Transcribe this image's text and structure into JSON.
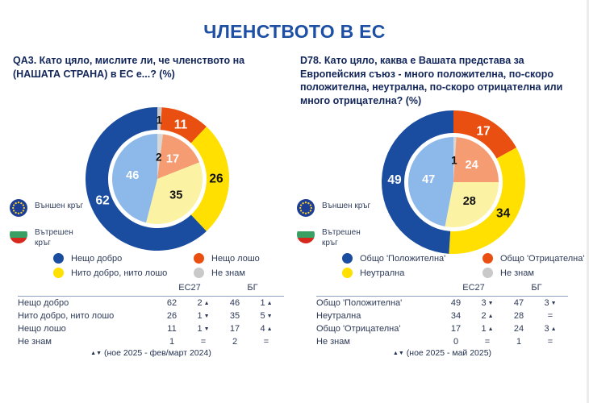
{
  "title": "ЧЛЕНСТВОТО В ЕС",
  "colors": {
    "title_blue": "#1d4fa5",
    "blue": "#1a4da0",
    "orange": "#ea4f12",
    "yellow": "#ffe000",
    "gray": "#c9c9c9",
    "light_blue": "#8db9ea",
    "salmon": "#f69c73",
    "light_yellow": "#fbf2a4",
    "light_gray": "#d7d7d7"
  },
  "panels": [
    {
      "question": "QA3. Като цяло, мислите ли, че членството на (НАШАТА СТРАНА) в ЕС е...? (%)",
      "ring_legend": [
        {
          "flag": "eu",
          "label": "Външен кръг"
        },
        {
          "flag": "bg",
          "label": "Вътрешен кръг"
        }
      ],
      "color_legend": [
        {
          "color": "#1a4da0",
          "label": "Нещо добро"
        },
        {
          "color": "#ea4f12",
          "label": "Нещо лошо"
        },
        {
          "color": "#ffe000",
          "label": "Нито добро, нито лошо"
        },
        {
          "color": "#c9c9c9",
          "label": "Не знам"
        }
      ],
      "table": {
        "group_headers": [
          "ЕС27",
          "БГ"
        ],
        "rows": [
          {
            "label": "Нещо добро",
            "cells": [
              {
                "t": "62"
              },
              {
                "t": "2",
                "a": "up"
              },
              {
                "t": "46"
              },
              {
                "t": "1",
                "a": "up"
              }
            ]
          },
          {
            "label": "Нито добро, нито лошо",
            "cells": [
              {
                "t": "26"
              },
              {
                "t": "1",
                "a": "down"
              },
              {
                "t": "35"
              },
              {
                "t": "5",
                "a": "down"
              }
            ]
          },
          {
            "label": "Нещо лошо",
            "cells": [
              {
                "t": "11"
              },
              {
                "t": "1",
                "a": "down"
              },
              {
                "t": "17"
              },
              {
                "t": "4",
                "a": "up"
              }
            ]
          },
          {
            "label": "Не знам",
            "cells": [
              {
                "t": "1"
              },
              {
                "t": "="
              },
              {
                "t": "2"
              },
              {
                "t": "="
              }
            ]
          }
        ],
        "footnote_marks": "▲▼",
        "footnote_text": "(ное 2025 - фев/март 2024)"
      }
    },
    {
      "question": "D78. Като цяло, каква е Вашата представа за Европейския съюз - много положителна, по-скоро положителна, неутрална, по-скоро отрицателна или много отрицателна? (%)",
      "ring_legend": [
        {
          "flag": "eu",
          "label": "Външен кръг"
        },
        {
          "flag": "bg",
          "label": "Вътрешен кръг"
        }
      ],
      "color_legend": [
        {
          "color": "#1a4da0",
          "label": "Общо 'Положителна'"
        },
        {
          "color": "#ea4f12",
          "label": "Общо 'Отрицателна'"
        },
        {
          "color": "#ffe000",
          "label": "Неутрална"
        },
        {
          "color": "#c9c9c9",
          "label": "Не знам"
        }
      ],
      "table": {
        "group_headers": [
          "ЕС27",
          "БГ"
        ],
        "rows": [
          {
            "label": "Общо 'Положителна'",
            "cells": [
              {
                "t": "49"
              },
              {
                "t": "3",
                "a": "down"
              },
              {
                "t": "47"
              },
              {
                "t": "3",
                "a": "down"
              }
            ]
          },
          {
            "label": "Неутрална",
            "cells": [
              {
                "t": "34"
              },
              {
                "t": "2",
                "a": "up"
              },
              {
                "t": "28"
              },
              {
                "t": "="
              }
            ]
          },
          {
            "label": "Общо 'Отрицателна'",
            "cells": [
              {
                "t": "17"
              },
              {
                "t": "1",
                "a": "up"
              },
              {
                "t": "24"
              },
              {
                "t": "3",
                "a": "up"
              }
            ]
          },
          {
            "label": "Не знам",
            "cells": [
              {
                "t": "0"
              },
              {
                "t": "="
              },
              {
                "t": "1"
              },
              {
                "t": "="
              }
            ]
          }
        ],
        "footnote_marks": "▲▼",
        "footnote_text": "(ное 2025 - май 2025)"
      }
    }
  ],
  "chart_data": [
    {
      "type": "donut-nested",
      "title": "QA3. Като цяло, мислите ли, че членството на (НАШАТА СТРАНА) в ЕС е...? (%)",
      "start_angle_deg": 0,
      "clockwise": true,
      "legend_position": "bottom",
      "rings": [
        {
          "name": "Външен кръг (ЕС27)",
          "radius": "outer",
          "slices": [
            {
              "label": "Не знам",
              "value": 1,
              "color": "#c9c9c9",
              "text": "#111111"
            },
            {
              "label": "Нещо лошо",
              "value": 11,
              "color": "#ea4f12",
              "text": "#ffffff"
            },
            {
              "label": "Нито добро, нито лошо",
              "value": 26,
              "color": "#ffe000",
              "text": "#111111"
            },
            {
              "label": "Нещо добро",
              "value": 62,
              "color": "#1a4da0",
              "text": "#ffffff"
            }
          ]
        },
        {
          "name": "Вътрешен кръг (БГ)",
          "radius": "inner",
          "slices": [
            {
              "label": "Не знам",
              "value": 2,
              "color": "#d7d7d7",
              "text": "#111111"
            },
            {
              "label": "Нещо лошо",
              "value": 17,
              "color": "#f69c73",
              "text": "#ffffff"
            },
            {
              "label": "Нито добро, нито лошо",
              "value": 35,
              "color": "#fbf2a4",
              "text": "#111111"
            },
            {
              "label": "Нещо добро",
              "value": 46,
              "color": "#8db9ea",
              "text": "#ffffff"
            }
          ]
        }
      ]
    },
    {
      "type": "donut-nested",
      "title": "D78. Като цяло, каква е Вашата представа за Европейския съюз - много положителна, по-скоро положителна, неутрална, по-скоро отрицателна или много отрицателна? (%)",
      "start_angle_deg": 0,
      "clockwise": true,
      "legend_position": "bottom",
      "rings": [
        {
          "name": "Външен кръг (ЕС27)",
          "radius": "outer",
          "slices": [
            {
              "label": "Не знам",
              "value": 0,
              "color": "#c9c9c9",
              "text": "#111111"
            },
            {
              "label": "Общо 'Отрицателна'",
              "value": 17,
              "color": "#ea4f12",
              "text": "#ffffff"
            },
            {
              "label": "Неутрална",
              "value": 34,
              "color": "#ffe000",
              "text": "#111111"
            },
            {
              "label": "Общо 'Положителна'",
              "value": 49,
              "color": "#1a4da0",
              "text": "#ffffff"
            }
          ]
        },
        {
          "name": "Вътрешен кръг (БГ)",
          "radius": "inner",
          "slices": [
            {
              "label": "Не знам",
              "value": 1,
              "color": "#d7d7d7",
              "text": "#111111"
            },
            {
              "label": "Общо 'Отрицателна'",
              "value": 24,
              "color": "#f69c73",
              "text": "#ffffff"
            },
            {
              "label": "Неутрална",
              "value": 28,
              "color": "#fbf2a4",
              "text": "#111111"
            },
            {
              "label": "Общо 'Положителна'",
              "value": 47,
              "color": "#8db9ea",
              "text": "#ffffff"
            }
          ]
        }
      ]
    }
  ]
}
